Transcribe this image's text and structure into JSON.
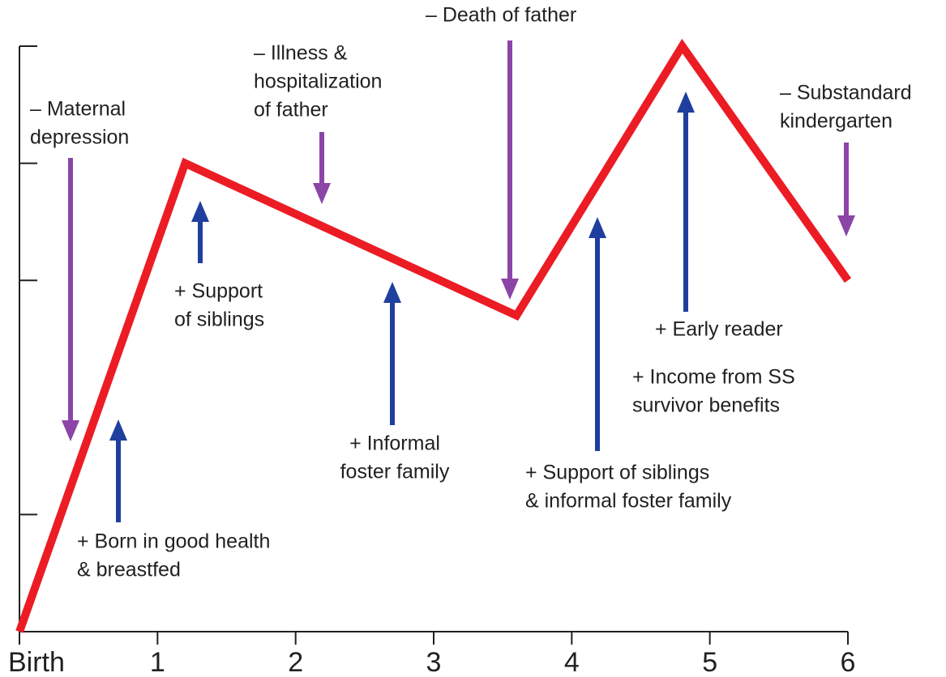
{
  "chart_data": {
    "type": "line",
    "x": [
      0,
      1.2,
      3.6,
      4.8,
      6
    ],
    "values": [
      0,
      4,
      2.7,
      5,
      3
    ],
    "color": "#ec1c24",
    "xlim": [
      0,
      6
    ],
    "xticks": [
      {
        "value": 0,
        "label": "Birth"
      },
      1,
      2,
      3,
      4,
      5,
      6
    ],
    "ylim": [
      0,
      5
    ],
    "yticks": [
      1,
      3,
      4,
      5
    ],
    "annotations": [
      {
        "lines": [
          "– Maternal",
          "depression"
        ]
      },
      {
        "lines": [
          "+ Born in good health",
          "& breastfed"
        ]
      },
      {
        "lines": [
          "– Illness &",
          "hospitalization",
          "of father"
        ]
      },
      {
        "lines": [
          "+ Support",
          "of siblings"
        ]
      },
      {
        "lines": [
          "+ Informal",
          "foster family"
        ]
      },
      {
        "lines": [
          "– Death of father"
        ]
      },
      {
        "lines": [
          "+ Support of siblings",
          "& informal foster family"
        ]
      },
      {
        "lines": [
          "+ Early reader"
        ]
      },
      {
        "lines": [
          "+ Income from SS",
          "survivor benefits"
        ]
      },
      {
        "lines": [
          "– Substandard",
          "kindergarten"
        ]
      }
    ]
  }
}
